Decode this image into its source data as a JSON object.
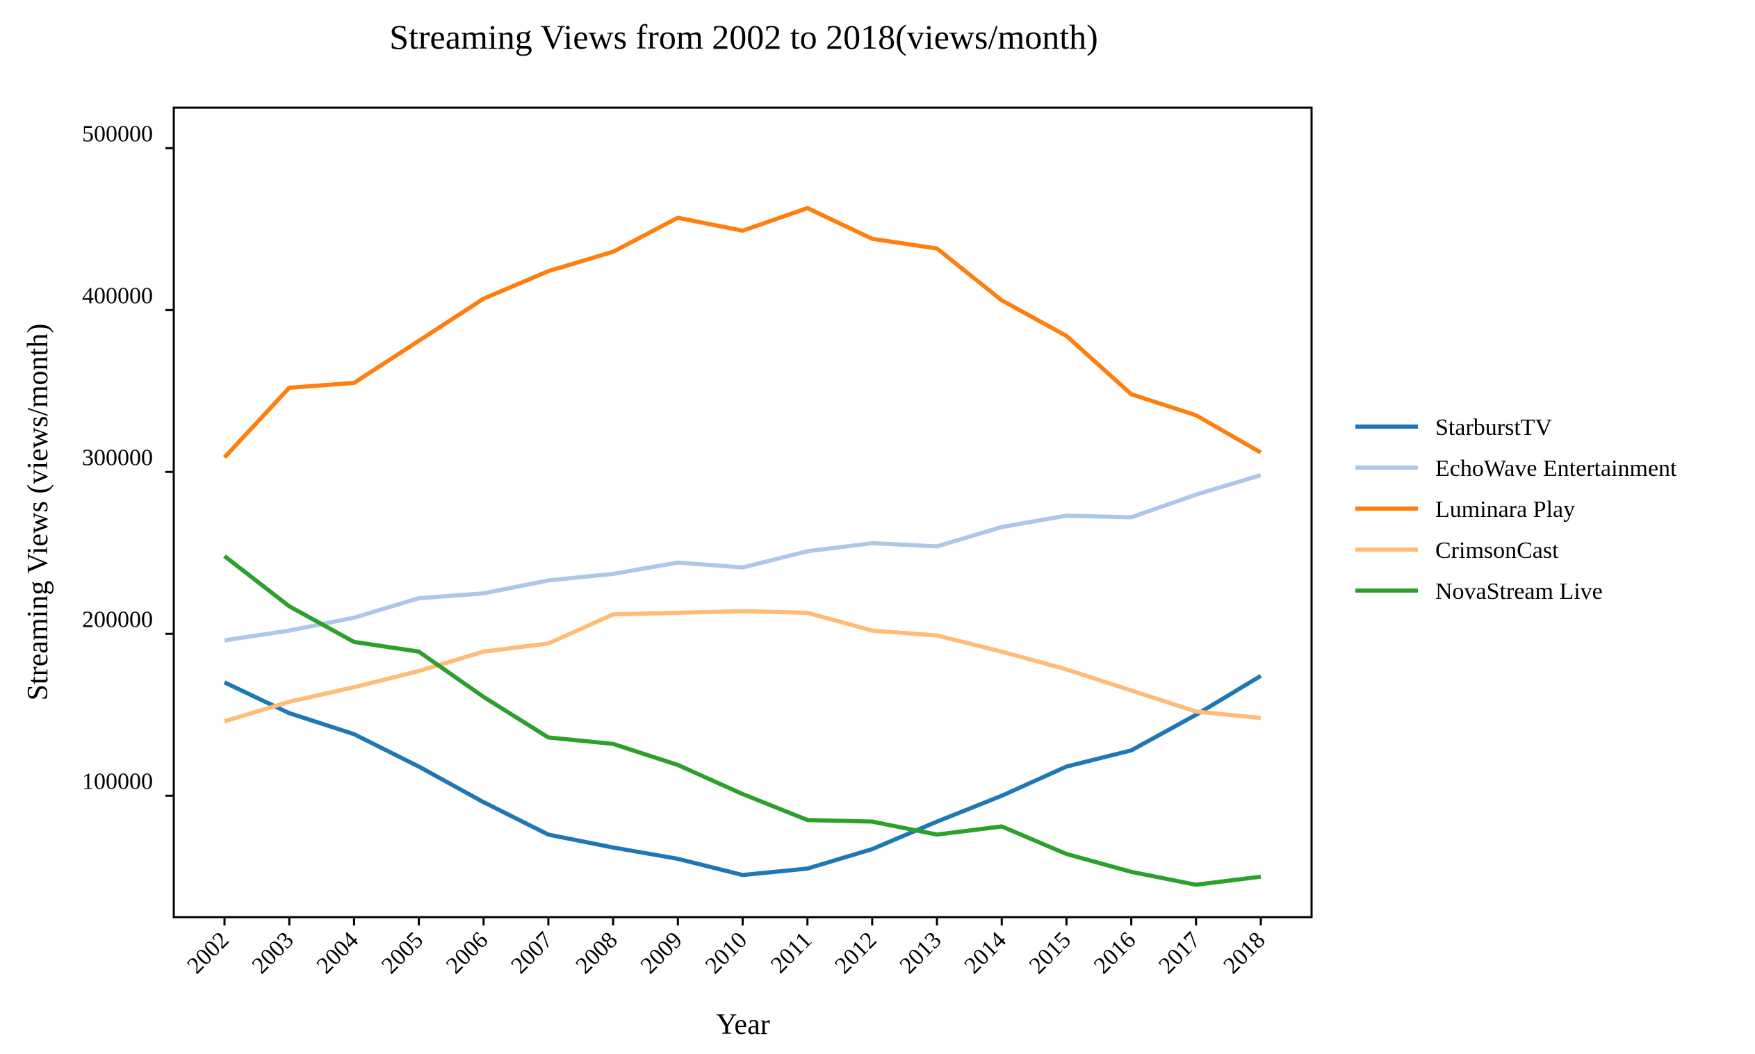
{
  "chart_data": {
    "type": "line",
    "title": "Streaming Views from 2002 to 2018(views/month)",
    "xlabel": "Year",
    "ylabel": "Streaming Views (views/month)",
    "x": [
      "2002",
      "2003",
      "2004",
      "2005",
      "2006",
      "2007",
      "2008",
      "2009",
      "2010",
      "2011",
      "2012",
      "2013",
      "2014",
      "2015",
      "2016",
      "2017",
      "2018"
    ],
    "yticks": [
      "100000",
      "200000",
      "300000",
      "400000",
      "500000"
    ],
    "ylim": [
      25000,
      525000
    ],
    "grid": false,
    "legend_position": "right",
    "series": [
      {
        "name": "StarburstTV",
        "color": "#1f77b4",
        "values": [
          170000,
          151000,
          138000,
          118000,
          96000,
          76000,
          68000,
          61000,
          51000,
          55000,
          67000,
          84000,
          100000,
          118000,
          128000,
          150000,
          174000
        ]
      },
      {
        "name": "EchoWave Entertainment",
        "color": "#aec7e8",
        "values": [
          196000,
          202000,
          210000,
          222000,
          225000,
          233000,
          237000,
          244000,
          241000,
          251000,
          256000,
          254000,
          266000,
          273000,
          272000,
          286000,
          298000
        ]
      },
      {
        "name": "Luminara Play",
        "color": "#ff7f0e",
        "values": [
          309000,
          352000,
          355000,
          381000,
          407000,
          424000,
          436000,
          457000,
          449000,
          463000,
          444000,
          438000,
          406000,
          384000,
          348000,
          335000,
          312000
        ]
      },
      {
        "name": "CrimsonCast",
        "color": "#ffbb78",
        "values": [
          146000,
          158000,
          167000,
          177000,
          189000,
          194000,
          212000,
          213000,
          214000,
          213000,
          202000,
          199000,
          189000,
          178000,
          165000,
          152000,
          148000
        ]
      },
      {
        "name": "NovaStream Live",
        "color": "#2ca02c",
        "values": [
          248000,
          217000,
          195000,
          189000,
          161000,
          136000,
          132000,
          119000,
          101000,
          85000,
          84000,
          76000,
          81000,
          64000,
          53000,
          45000,
          50000
        ]
      }
    ]
  }
}
